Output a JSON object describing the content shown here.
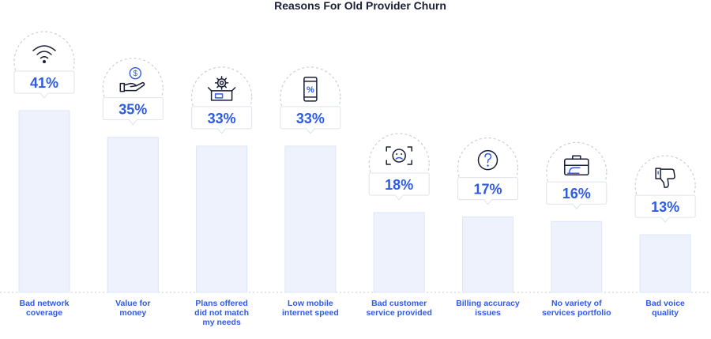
{
  "chart_data": {
    "type": "bar",
    "title": "Reasons For Old Provider Churn",
    "categories": [
      "Bad network coverage",
      "Value for money",
      "Plans offered did not match my needs",
      "Low mobile internet speed",
      "Bad customer service provided",
      "Billing accuracy issues",
      "No variety of services portfolio",
      "Bad voice quality"
    ],
    "category_lines": [
      [
        "Bad network",
        "coverage"
      ],
      [
        "Value for",
        "money"
      ],
      [
        "Plans offered",
        "did not match",
        "my needs"
      ],
      [
        "Low mobile",
        "internet speed"
      ],
      [
        "Bad customer",
        "service provided"
      ],
      [
        "Billing accuracy",
        "issues"
      ],
      [
        "No variety of",
        "services portfolio"
      ],
      [
        "Bad voice",
        "quality"
      ]
    ],
    "values": [
      41,
      35,
      33,
      33,
      18,
      17,
      16,
      13
    ],
    "value_labels": [
      "41%",
      "35%",
      "33%",
      "33%",
      "18%",
      "17%",
      "16%",
      "13%"
    ],
    "icons": [
      "wifi-icon",
      "money-hand-icon",
      "gear-box-icon",
      "mobile-percent-icon",
      "sad-face-icon",
      "question-icon",
      "briefcase-icon",
      "thumbs-down-icon"
    ],
    "ylim": [
      0,
      41
    ],
    "grid": false,
    "legend": "none",
    "colors": {
      "bar": "#eef2fc",
      "label": "#2d5be3",
      "title": "#1a1f36"
    }
  }
}
